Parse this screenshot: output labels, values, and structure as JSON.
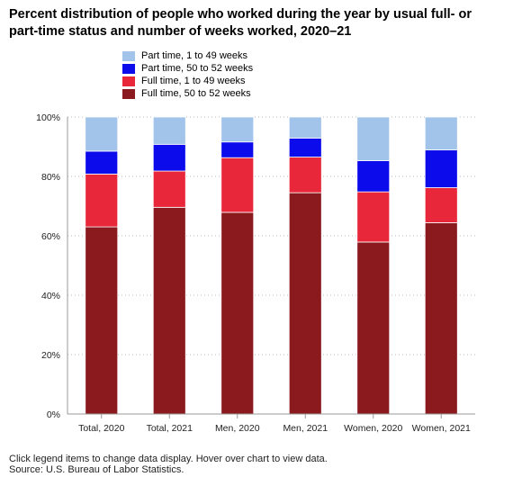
{
  "header": {
    "title": "Percent distribution of people who worked during the year by usual full- or part-time status and number of weeks worked, 2020–21"
  },
  "footer": {
    "note": "Click legend items to change data display. Hover over chart to view data.",
    "source": "Source: U.S. Bureau of Labor Statistics."
  },
  "chart_data": {
    "type": "bar",
    "stacked": true,
    "categories": [
      "Total, 2020",
      "Total, 2021",
      "Men, 2020",
      "Men, 2021",
      "Women, 2020",
      "Women, 2021"
    ],
    "series": [
      {
        "name": "Full time, 50 to 52 weeks",
        "color": "#8b1a1f",
        "values": [
          63.0,
          69.6,
          67.9,
          74.5,
          57.9,
          64.4
        ]
      },
      {
        "name": "Full time, 1 to 49 weeks",
        "color": "#e8283a",
        "values": [
          17.8,
          12.2,
          18.4,
          12.0,
          16.9,
          11.8
        ]
      },
      {
        "name": "Part time, 50 to 52 weeks",
        "color": "#0b0bec",
        "values": [
          7.7,
          9.0,
          5.3,
          6.4,
          10.5,
          12.7
        ]
      },
      {
        "name": "Part time, 1 to 49 weeks",
        "color": "#a3c4ea",
        "values": [
          11.5,
          9.2,
          8.4,
          7.1,
          14.7,
          11.1
        ]
      }
    ],
    "legend_order": [
      "Part time, 1 to 49 weeks",
      "Part time, 50 to 52 weeks",
      "Full time, 1 to 49 weeks",
      "Full time, 50 to 52 weeks"
    ],
    "y_ticks": [
      "0%",
      "20%",
      "40%",
      "60%",
      "80%",
      "100%"
    ],
    "ylim": [
      0,
      100
    ],
    "grid": "horizontal-dotted",
    "legend_position": "top-left"
  }
}
